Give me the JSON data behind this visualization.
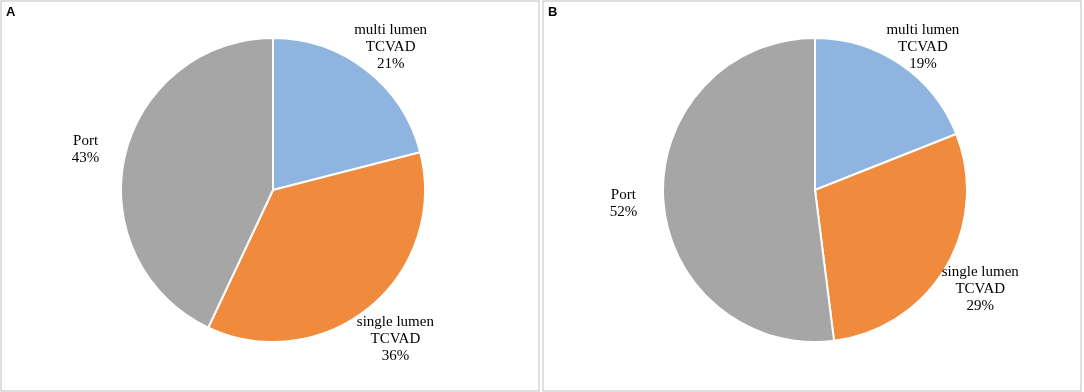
{
  "chart_data": [
    {
      "type": "pie",
      "title": "A",
      "categories": [
        "multi lumen TCVAD",
        "single lumen TCVAD",
        "Port"
      ],
      "values": [
        21,
        36,
        43
      ],
      "value_labels": [
        "21%",
        "36%",
        "43%"
      ],
      "colors": [
        "#8fb4e0",
        "#f08a3c",
        "#a6a6a6"
      ]
    },
    {
      "type": "pie",
      "title": "B",
      "categories": [
        "multi lumen TCVAD",
        "single lumen TCVAD",
        "Port"
      ],
      "values": [
        19,
        29,
        52
      ],
      "value_labels": [
        "19%",
        "29%",
        "52%"
      ],
      "colors": [
        "#8fb4e0",
        "#f08a3c",
        "#a6a6a6"
      ]
    }
  ]
}
